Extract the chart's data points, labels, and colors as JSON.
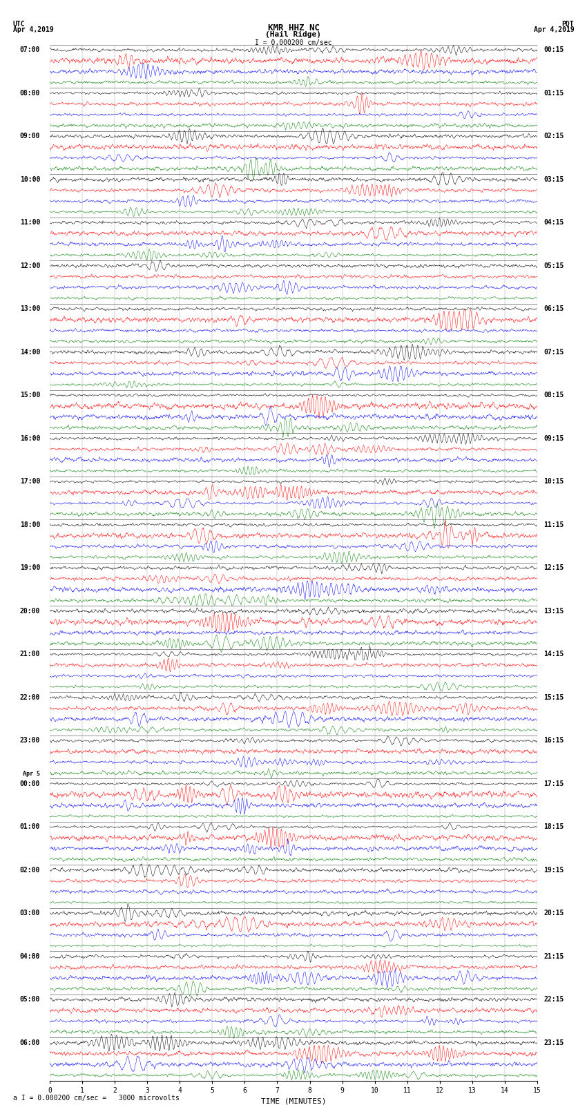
{
  "title_line1": "KMR HHZ NC",
  "title_line2": "(Hail Ridge)",
  "scale_label": "I = 0.000200 cm/sec",
  "bottom_label": "a I = 0.000200 cm/sec =   3000 microvolts",
  "xlabel": "TIME (MINUTES)",
  "left_header": "UTC\nApr 4,2019",
  "right_header": "PDT\nApr 4,2019",
  "left_times": [
    "07:00",
    "08:00",
    "09:00",
    "10:00",
    "11:00",
    "12:00",
    "13:00",
    "14:00",
    "15:00",
    "16:00",
    "17:00",
    "18:00",
    "19:00",
    "20:00",
    "21:00",
    "22:00",
    "23:00",
    "Apr 5",
    "00:00",
    "01:00",
    "02:00",
    "03:00",
    "04:00",
    "05:00",
    "06:00"
  ],
  "right_times": [
    "00:15",
    "01:15",
    "02:15",
    "03:15",
    "04:15",
    "05:15",
    "06:15",
    "07:15",
    "08:15",
    "09:15",
    "10:15",
    "11:15",
    "12:15",
    "13:15",
    "14:15",
    "15:15",
    "16:15",
    "17:15",
    "18:15",
    "19:15",
    "20:15",
    "21:15",
    "22:15",
    "23:15"
  ],
  "colors": [
    "black",
    "red",
    "blue",
    "green"
  ],
  "n_rows": 24,
  "traces_per_row": 4,
  "duration_minutes": 15,
  "bg_color": "white",
  "font_size_title": 9,
  "font_size_labels": 7,
  "font_size_time": 7,
  "amplitude_scale": 0.038,
  "seed": 42
}
